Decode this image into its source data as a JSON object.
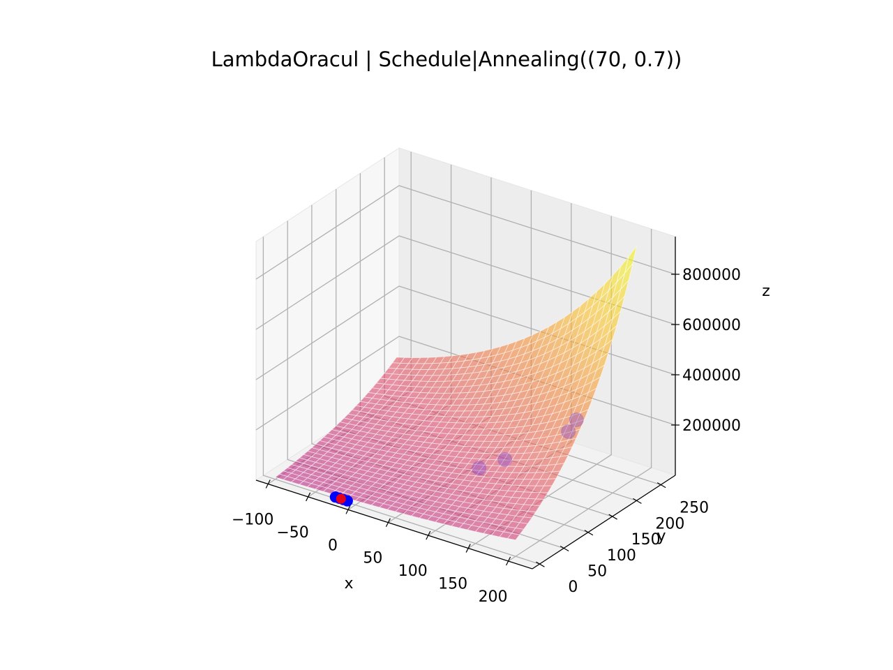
{
  "chart_data": {
    "type": "surface",
    "title": "LambdaOracul | Schedule|Annealing((70, 0.7))",
    "xlabel": "x",
    "ylabel": "y",
    "zlabel": "z",
    "x_ticks": [
      "−100",
      "−50",
      "0",
      "50",
      "100",
      "150",
      "200"
    ],
    "y_ticks": [
      "0",
      "50",
      "100",
      "150",
      "200",
      "250"
    ],
    "z_ticks": [
      "200000",
      "400000",
      "600000",
      "800000"
    ],
    "xlim": [
      -115,
      230
    ],
    "ylim": [
      -15,
      280
    ],
    "zlim": [
      0,
      950000
    ],
    "surface": {
      "x_range": [
        -100,
        200
      ],
      "y_range": [
        0,
        250
      ],
      "z_corners": {
        "x_min_y_min": 8000,
        "x_max_y_min": 65000,
        "x_min_y_max": 170000,
        "x_max_y_max": 920000
      },
      "colormap": "plasma",
      "alpha": 0.6
    },
    "points_blue": [
      {
        "x": -25,
        "y": 0,
        "z": 6000
      },
      {
        "x": -20,
        "y": 0,
        "z": 6000
      },
      {
        "x": -15,
        "y": 0,
        "z": 6000
      },
      {
        "x": -10,
        "y": 0,
        "z": 6000
      }
    ],
    "point_red": {
      "x": -18,
      "y": 0,
      "z": 6000
    },
    "points_faint": [
      {
        "x": 100,
        "y": 90,
        "z": 135000
      },
      {
        "x": 120,
        "y": 110,
        "z": 165000
      },
      {
        "x": 155,
        "y": 200,
        "z": 245000
      },
      {
        "x": 160,
        "y": 175,
        "z": 235000
      }
    ],
    "grid": true
  }
}
